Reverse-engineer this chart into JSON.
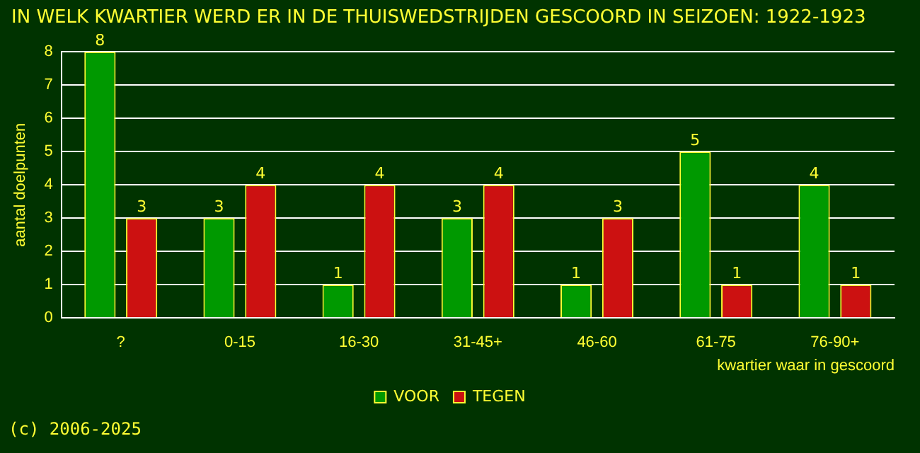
{
  "chart_data": {
    "type": "bar",
    "title": "IN WELK KWARTIER WERD ER IN DE THUISWEDSTRIJDEN GESCOORD IN SEIZOEN: 1922-1923",
    "xlabel": "kwartier waar in gescoord",
    "ylabel": "aantal doelpunten",
    "categories": [
      "?",
      "0-15",
      "16-30",
      "31-45+",
      "46-60",
      "61-75",
      "76-90+"
    ],
    "series": [
      {
        "name": "VOOR",
        "color": "#009900",
        "values": [
          8,
          3,
          1,
          3,
          1,
          5,
          4
        ]
      },
      {
        "name": "TEGEN",
        "color": "#cc1111",
        "values": [
          3,
          4,
          4,
          4,
          3,
          1,
          1
        ]
      }
    ],
    "ylim": [
      0,
      8
    ],
    "yticks": [
      0,
      1,
      2,
      3,
      4,
      5,
      6,
      7,
      8
    ],
    "grid": "y",
    "legend": "bottom",
    "data_labels": true,
    "annotations": [
      "(c) 2006-2025"
    ]
  }
}
